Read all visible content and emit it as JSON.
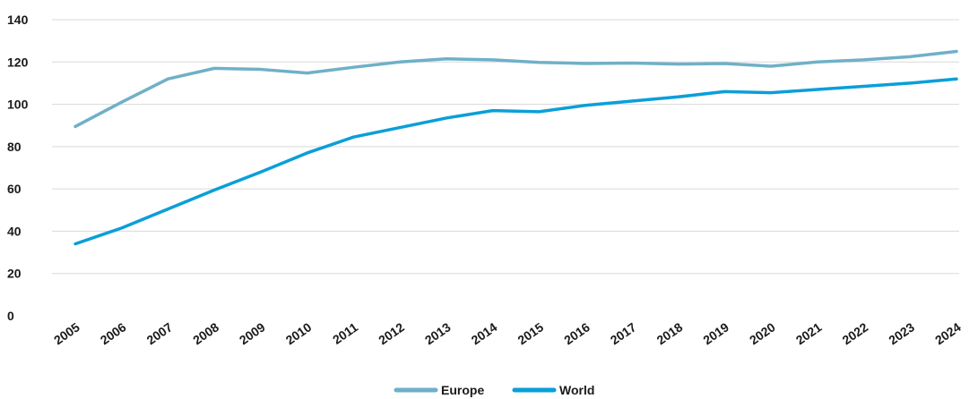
{
  "chart_data": {
    "type": "line",
    "title": "",
    "xlabel": "",
    "ylabel": "",
    "ylim": [
      0,
      140
    ],
    "yticks": [
      "0",
      "20",
      "40",
      "60",
      "80",
      "100",
      "120",
      "140"
    ],
    "grid": true,
    "legend_position": "bottom",
    "categories": [
      "2005",
      "2006",
      "2007",
      "2008",
      "2009",
      "2010",
      "2011",
      "2012",
      "2013",
      "2014",
      "2015",
      "2016",
      "2017",
      "2018",
      "2019",
      "2020",
      "2021",
      "2022",
      "2023",
      "2024"
    ],
    "series": [
      {
        "name": "Europe",
        "color": "#6fb0c8",
        "values": [
          89.5,
          101,
          112,
          117,
          116.5,
          114.8,
          117.5,
          120,
          121.5,
          121,
          119.8,
          119.3,
          119.5,
          119,
          119.3,
          118,
          120,
          121,
          122.5,
          125
        ]
      },
      {
        "name": "World",
        "color": "#0a9fd8",
        "values": [
          34,
          41.5,
          50.5,
          59.5,
          68,
          77,
          84.5,
          89,
          93.5,
          97,
          96.5,
          99.5,
          101.5,
          103.5,
          106,
          105.5,
          107,
          108.5,
          110,
          112
        ]
      }
    ]
  }
}
